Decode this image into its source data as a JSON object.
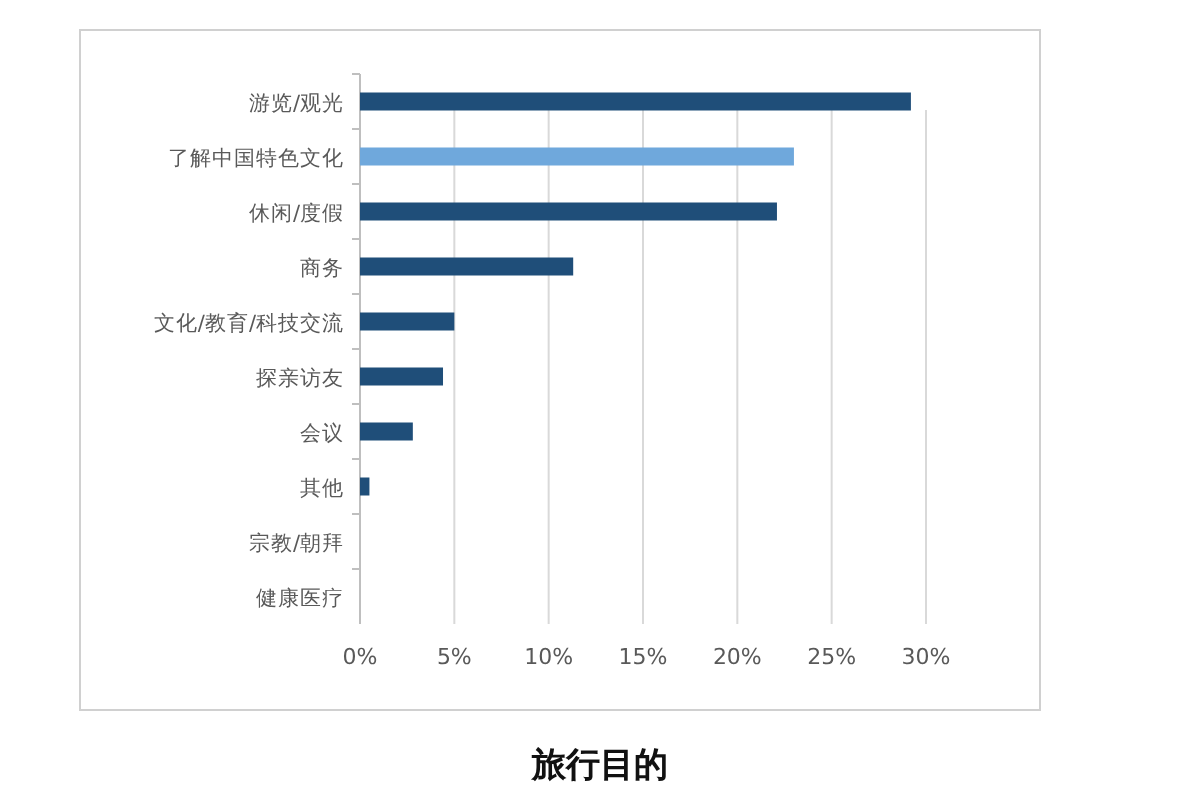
{
  "chart_data": {
    "type": "bar",
    "orientation": "horizontal",
    "title": "旅行目的",
    "categories": [
      "游览/观光",
      "了解中国特色文化",
      "休闲/度假",
      "商务",
      "文化/教育/科技交流",
      "探亲访友",
      "会议",
      "其他",
      "宗教/朝拜",
      "健康医疗"
    ],
    "values": [
      29.2,
      23.0,
      22.1,
      11.3,
      5.0,
      4.4,
      2.8,
      0.5,
      0,
      0
    ],
    "colors": [
      "#1f4e79",
      "#6fa8dc",
      "#1f4e79",
      "#1f4e79",
      "#1f4e79",
      "#1f4e79",
      "#1f4e79",
      "#1f4e79",
      "#1f4e79",
      "#1f4e79"
    ],
    "xlim": [
      0,
      30
    ],
    "xticks": [
      {
        "value": 0,
        "label": "0%"
      },
      {
        "value": 5,
        "label": "5%"
      },
      {
        "value": 10,
        "label": "10%"
      },
      {
        "value": 15,
        "label": "15%"
      },
      {
        "value": 20,
        "label": "20%"
      },
      {
        "value": 25,
        "label": "25%"
      },
      {
        "value": 30,
        "label": "30%"
      }
    ],
    "grid": "x"
  }
}
